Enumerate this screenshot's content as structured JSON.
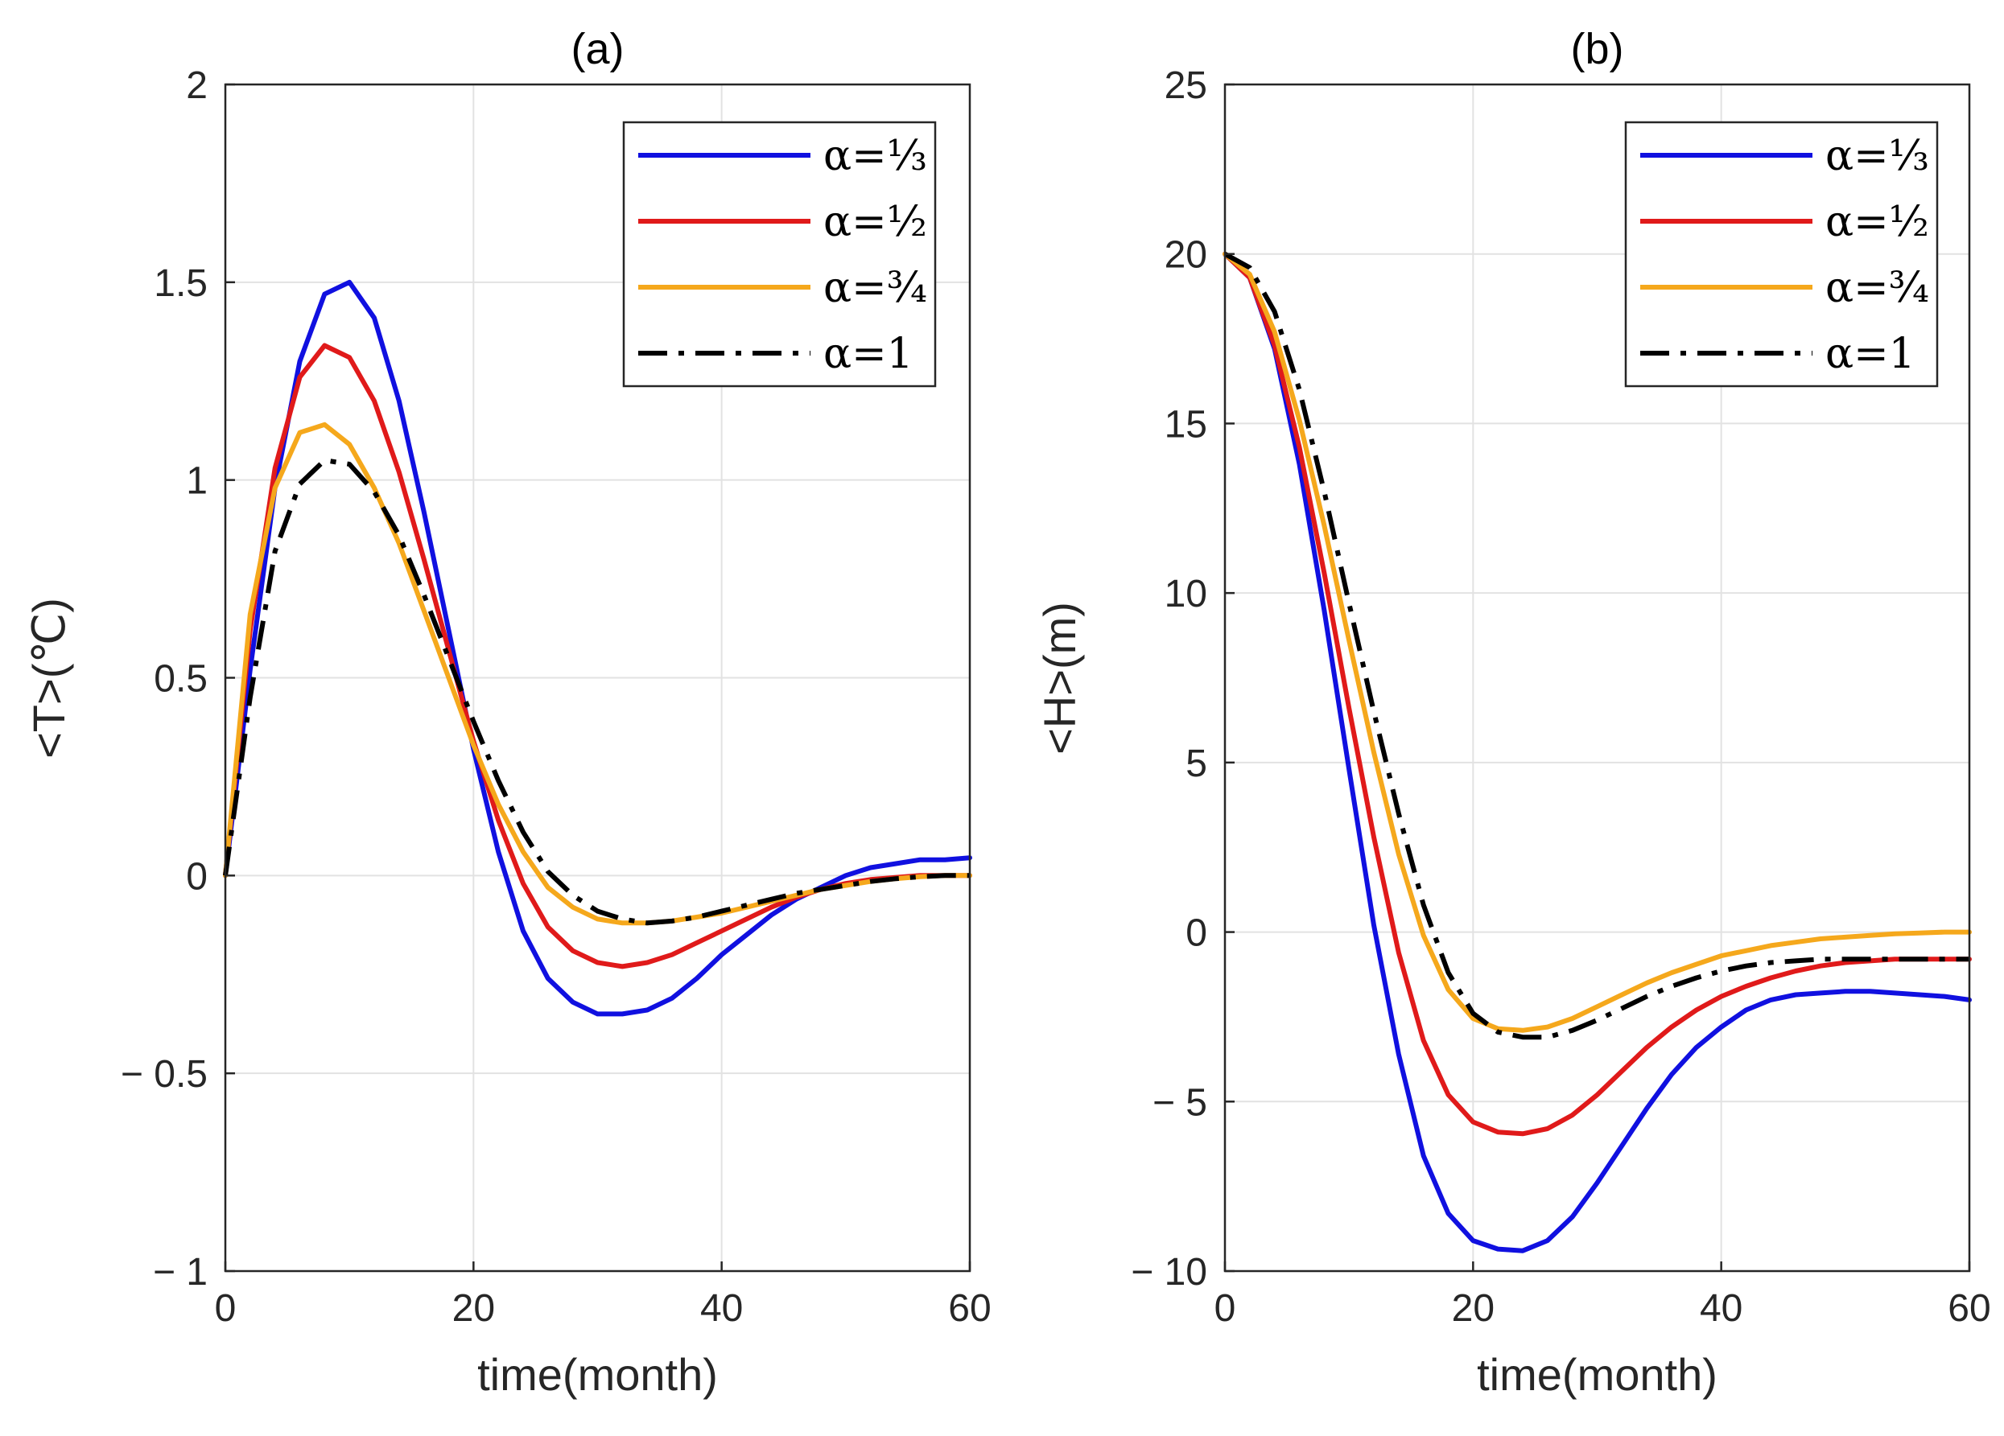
{
  "colors": {
    "alpha_1_3": "#1010e0",
    "alpha_1_2": "#e01a1a",
    "alpha_3_4": "#f5a81c",
    "alpha_1": "#000000",
    "grid": "#e2e2e2",
    "axis": "#262626"
  },
  "chart_data": [
    {
      "panel": "(a)",
      "type": "line",
      "title": "(a)",
      "xlabel": "time(month)",
      "ylabel": "<T>(℃)",
      "xlim": [
        0,
        60
      ],
      "ylim": [
        -1,
        2
      ],
      "xticks": [
        0,
        20,
        40,
        60
      ],
      "xtick_labels": [
        "0",
        "20",
        "40",
        "60"
      ],
      "yticks": [
        -1,
        -0.5,
        0,
        0.5,
        1,
        1.5,
        2
      ],
      "ytick_labels": [
        "− 1",
        "− 0.5",
        "0",
        "0.5",
        "1",
        "1.5",
        "2"
      ],
      "grid": true,
      "legend_position": "top-right",
      "x": [
        0,
        2,
        4,
        6,
        8,
        10,
        12,
        14,
        16,
        18,
        20,
        22,
        24,
        26,
        28,
        30,
        32,
        34,
        36,
        38,
        40,
        42,
        44,
        46,
        48,
        50,
        52,
        54,
        56,
        58,
        60
      ],
      "series": [
        {
          "name": "α=⅓",
          "color": "#1010e0",
          "style": "solid",
          "values": [
            0,
            0.52,
            0.98,
            1.3,
            1.47,
            1.5,
            1.41,
            1.2,
            0.92,
            0.62,
            0.32,
            0.06,
            -0.14,
            -0.26,
            -0.32,
            -0.35,
            -0.35,
            -0.34,
            -0.31,
            -0.26,
            -0.2,
            -0.15,
            -0.1,
            -0.06,
            -0.03,
            0,
            0.02,
            0.03,
            0.04,
            0.04,
            0.045
          ]
        },
        {
          "name": "α=½",
          "color": "#e01a1a",
          "style": "solid",
          "values": [
            0,
            0.62,
            1.03,
            1.26,
            1.34,
            1.31,
            1.2,
            1.02,
            0.8,
            0.57,
            0.34,
            0.14,
            -0.02,
            -0.13,
            -0.19,
            -0.22,
            -0.23,
            -0.22,
            -0.2,
            -0.17,
            -0.14,
            -0.11,
            -0.08,
            -0.055,
            -0.035,
            -0.02,
            -0.01,
            -0.005,
            0,
            0,
            0
          ]
        },
        {
          "name": "α=¾",
          "color": "#f5a81c",
          "style": "solid",
          "values": [
            0,
            0.66,
            0.98,
            1.12,
            1.14,
            1.09,
            0.98,
            0.84,
            0.67,
            0.5,
            0.33,
            0.18,
            0.06,
            -0.03,
            -0.08,
            -0.11,
            -0.12,
            -0.12,
            -0.115,
            -0.105,
            -0.095,
            -0.08,
            -0.065,
            -0.05,
            -0.035,
            -0.025,
            -0.015,
            -0.008,
            -0.003,
            0,
            0
          ]
        },
        {
          "name": "α=1",
          "color": "#000000",
          "style": "dashdot",
          "values": [
            0,
            0.45,
            0.82,
            0.99,
            1.05,
            1.04,
            0.97,
            0.86,
            0.71,
            0.55,
            0.39,
            0.24,
            0.11,
            0.01,
            -0.05,
            -0.09,
            -0.11,
            -0.12,
            -0.115,
            -0.105,
            -0.09,
            -0.075,
            -0.06,
            -0.045,
            -0.035,
            -0.025,
            -0.015,
            -0.008,
            -0.003,
            0,
            0
          ]
        }
      ]
    },
    {
      "panel": "(b)",
      "type": "line",
      "title": "(b)",
      "xlabel": "time(month)",
      "ylabel": "<H>(m)",
      "xlim": [
        0,
        60
      ],
      "ylim": [
        -10,
        25
      ],
      "xticks": [
        0,
        20,
        40,
        60
      ],
      "xtick_labels": [
        "0",
        "20",
        "40",
        "60"
      ],
      "yticks": [
        -10,
        -5,
        0,
        5,
        10,
        15,
        20,
        25
      ],
      "ytick_labels": [
        "− 10",
        "− 5",
        "0",
        "5",
        "10",
        "15",
        "20",
        "25"
      ],
      "grid": true,
      "legend_position": "top-right",
      "x": [
        0,
        2,
        4,
        6,
        8,
        10,
        12,
        14,
        16,
        18,
        20,
        22,
        24,
        26,
        28,
        30,
        32,
        34,
        36,
        38,
        40,
        42,
        44,
        46,
        48,
        50,
        52,
        54,
        56,
        58,
        60
      ],
      "series": [
        {
          "name": "α=⅓",
          "color": "#1010e0",
          "style": "solid",
          "values": [
            20,
            19.3,
            17.2,
            13.8,
            9.5,
            4.8,
            0.2,
            -3.6,
            -6.6,
            -8.3,
            -9.1,
            -9.35,
            -9.4,
            -9.1,
            -8.4,
            -7.4,
            -6.3,
            -5.2,
            -4.2,
            -3.4,
            -2.8,
            -2.3,
            -2.0,
            -1.85,
            -1.8,
            -1.75,
            -1.75,
            -1.8,
            -1.85,
            -1.9,
            -2.0
          ]
        },
        {
          "name": "α=½",
          "color": "#e01a1a",
          "style": "solid",
          "values": [
            20,
            19.3,
            17.3,
            14.3,
            10.6,
            6.6,
            2.8,
            -0.6,
            -3.2,
            -4.8,
            -5.6,
            -5.9,
            -5.95,
            -5.8,
            -5.4,
            -4.8,
            -4.1,
            -3.4,
            -2.8,
            -2.3,
            -1.9,
            -1.6,
            -1.35,
            -1.15,
            -1.0,
            -0.9,
            -0.85,
            -0.8,
            -0.8,
            -0.8,
            -0.8
          ]
        },
        {
          "name": "α=¾",
          "color": "#f5a81c",
          "style": "solid",
          "values": [
            20,
            19.4,
            17.7,
            15.1,
            12.0,
            8.6,
            5.3,
            2.3,
            -0.1,
            -1.7,
            -2.55,
            -2.85,
            -2.9,
            -2.8,
            -2.55,
            -2.2,
            -1.85,
            -1.5,
            -1.2,
            -0.95,
            -0.7,
            -0.55,
            -0.4,
            -0.3,
            -0.2,
            -0.15,
            -0.1,
            -0.05,
            -0.03,
            0,
            0
          ]
        },
        {
          "name": "α=1",
          "color": "#000000",
          "style": "dashdot",
          "values": [
            20,
            19.6,
            18.3,
            16.0,
            13.0,
            9.7,
            6.5,
            3.5,
            0.8,
            -1.2,
            -2.4,
            -2.95,
            -3.1,
            -3.1,
            -2.9,
            -2.6,
            -2.25,
            -1.9,
            -1.6,
            -1.35,
            -1.15,
            -1.0,
            -0.9,
            -0.85,
            -0.8,
            -0.8,
            -0.8,
            -0.8,
            -0.8,
            -0.8,
            -0.8
          ]
        }
      ]
    }
  ]
}
